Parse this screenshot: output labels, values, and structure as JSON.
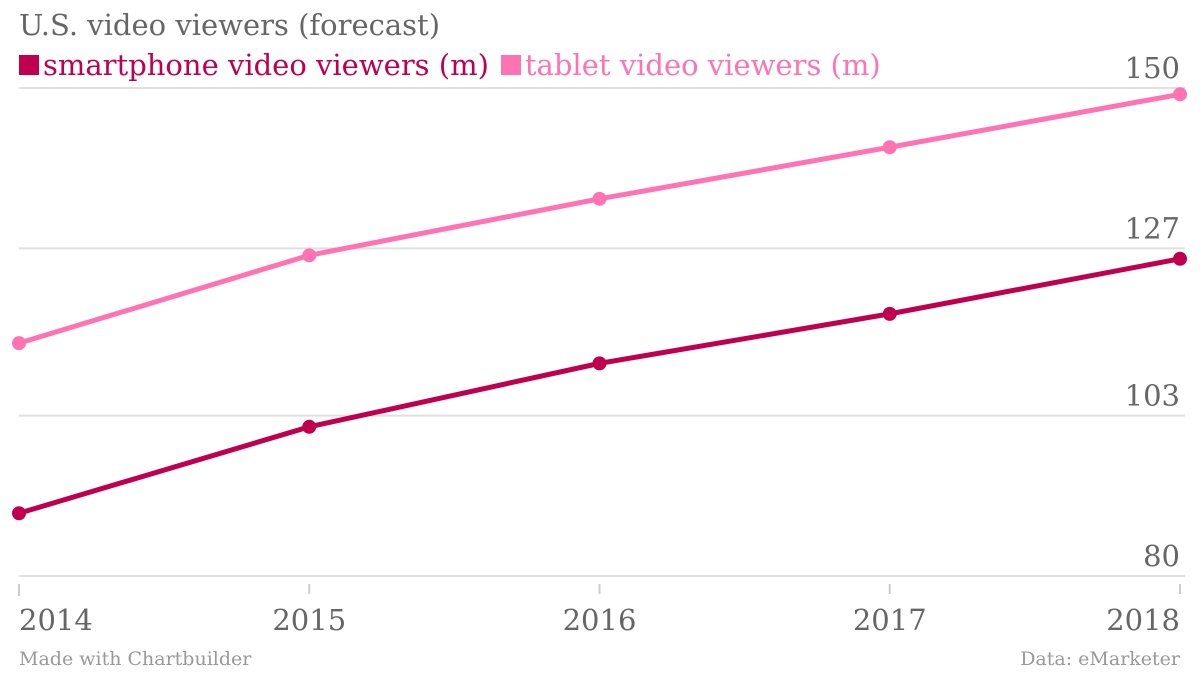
{
  "chart_data": {
    "type": "line",
    "title": "U.S. video viewers (forecast)",
    "categories": [
      "2014",
      "2015",
      "2016",
      "2017",
      "2018"
    ],
    "series": [
      {
        "name": "smartphone video viewers (m)",
        "color": "#c0004f",
        "values": [
          89.0,
          101.4,
          110.5,
          117.6,
          125.5
        ]
      },
      {
        "name": "tablet video viewers (m)",
        "color": "#ff73b3",
        "values": [
          113.4,
          126.0,
          134.1,
          141.5,
          149.1
        ]
      }
    ],
    "yticks": [
      80,
      103,
      127,
      150
    ],
    "ylim": [
      80,
      150
    ],
    "grid": true,
    "legend": "top-left"
  },
  "footer": {
    "left": "Made with Chartbuilder",
    "right": "Data: eMarketer"
  }
}
